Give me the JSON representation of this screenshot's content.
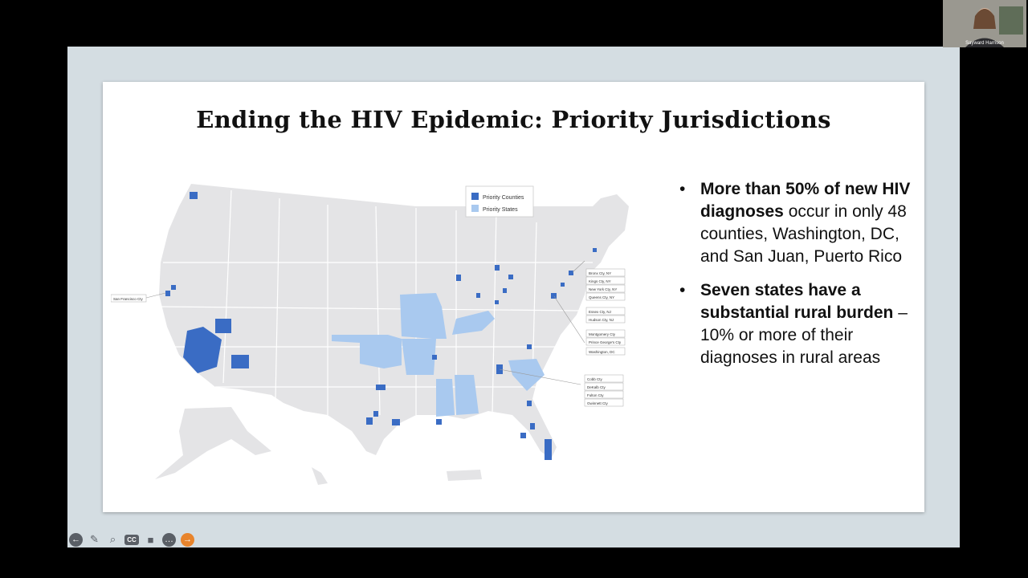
{
  "slide": {
    "title": "Ending the HIV Epidemic: Priority Jurisdictions",
    "legend": {
      "counties": "Priority Counties",
      "states": "Priority States"
    },
    "bullets": [
      {
        "strong": "More than 50% of new HIV diagnoses",
        "rest": " occur in only 48 counties, Washington, DC, and San Juan, Puerto Rico"
      },
      {
        "strong": "Seven states have a substantial rural burden",
        "rest": " – 10% or more of their diagnoses in rural areas"
      }
    ],
    "callouts_left": [
      "San Francisco Cty"
    ],
    "callouts_ne": [
      "Bronx Cty, NY",
      "Kings Cty, NY",
      "New York Cty, NY",
      "Queens Cty, NY",
      "Essex Cty, NJ",
      "Hudson Cty, NJ",
      "Montgomery Cty",
      "Prince George's Cty",
      "Washington, DC"
    ],
    "callouts_se": [
      "Cobb Cty",
      "DeKalb Cty",
      "Fulton Cty",
      "Gwinnett Cty"
    ]
  },
  "colors": {
    "county": "#3a6cc4",
    "state": "#a9c9ef",
    "land": "#e4e4e6",
    "border": "#ffffff"
  },
  "participant": {
    "name": "Sayward Harrison"
  },
  "toolbar_icons": [
    "back-arrow-icon",
    "pen-icon",
    "zoom-icon",
    "cc-icon",
    "camera-icon",
    "more-icon",
    "forward-arrow-icon"
  ]
}
